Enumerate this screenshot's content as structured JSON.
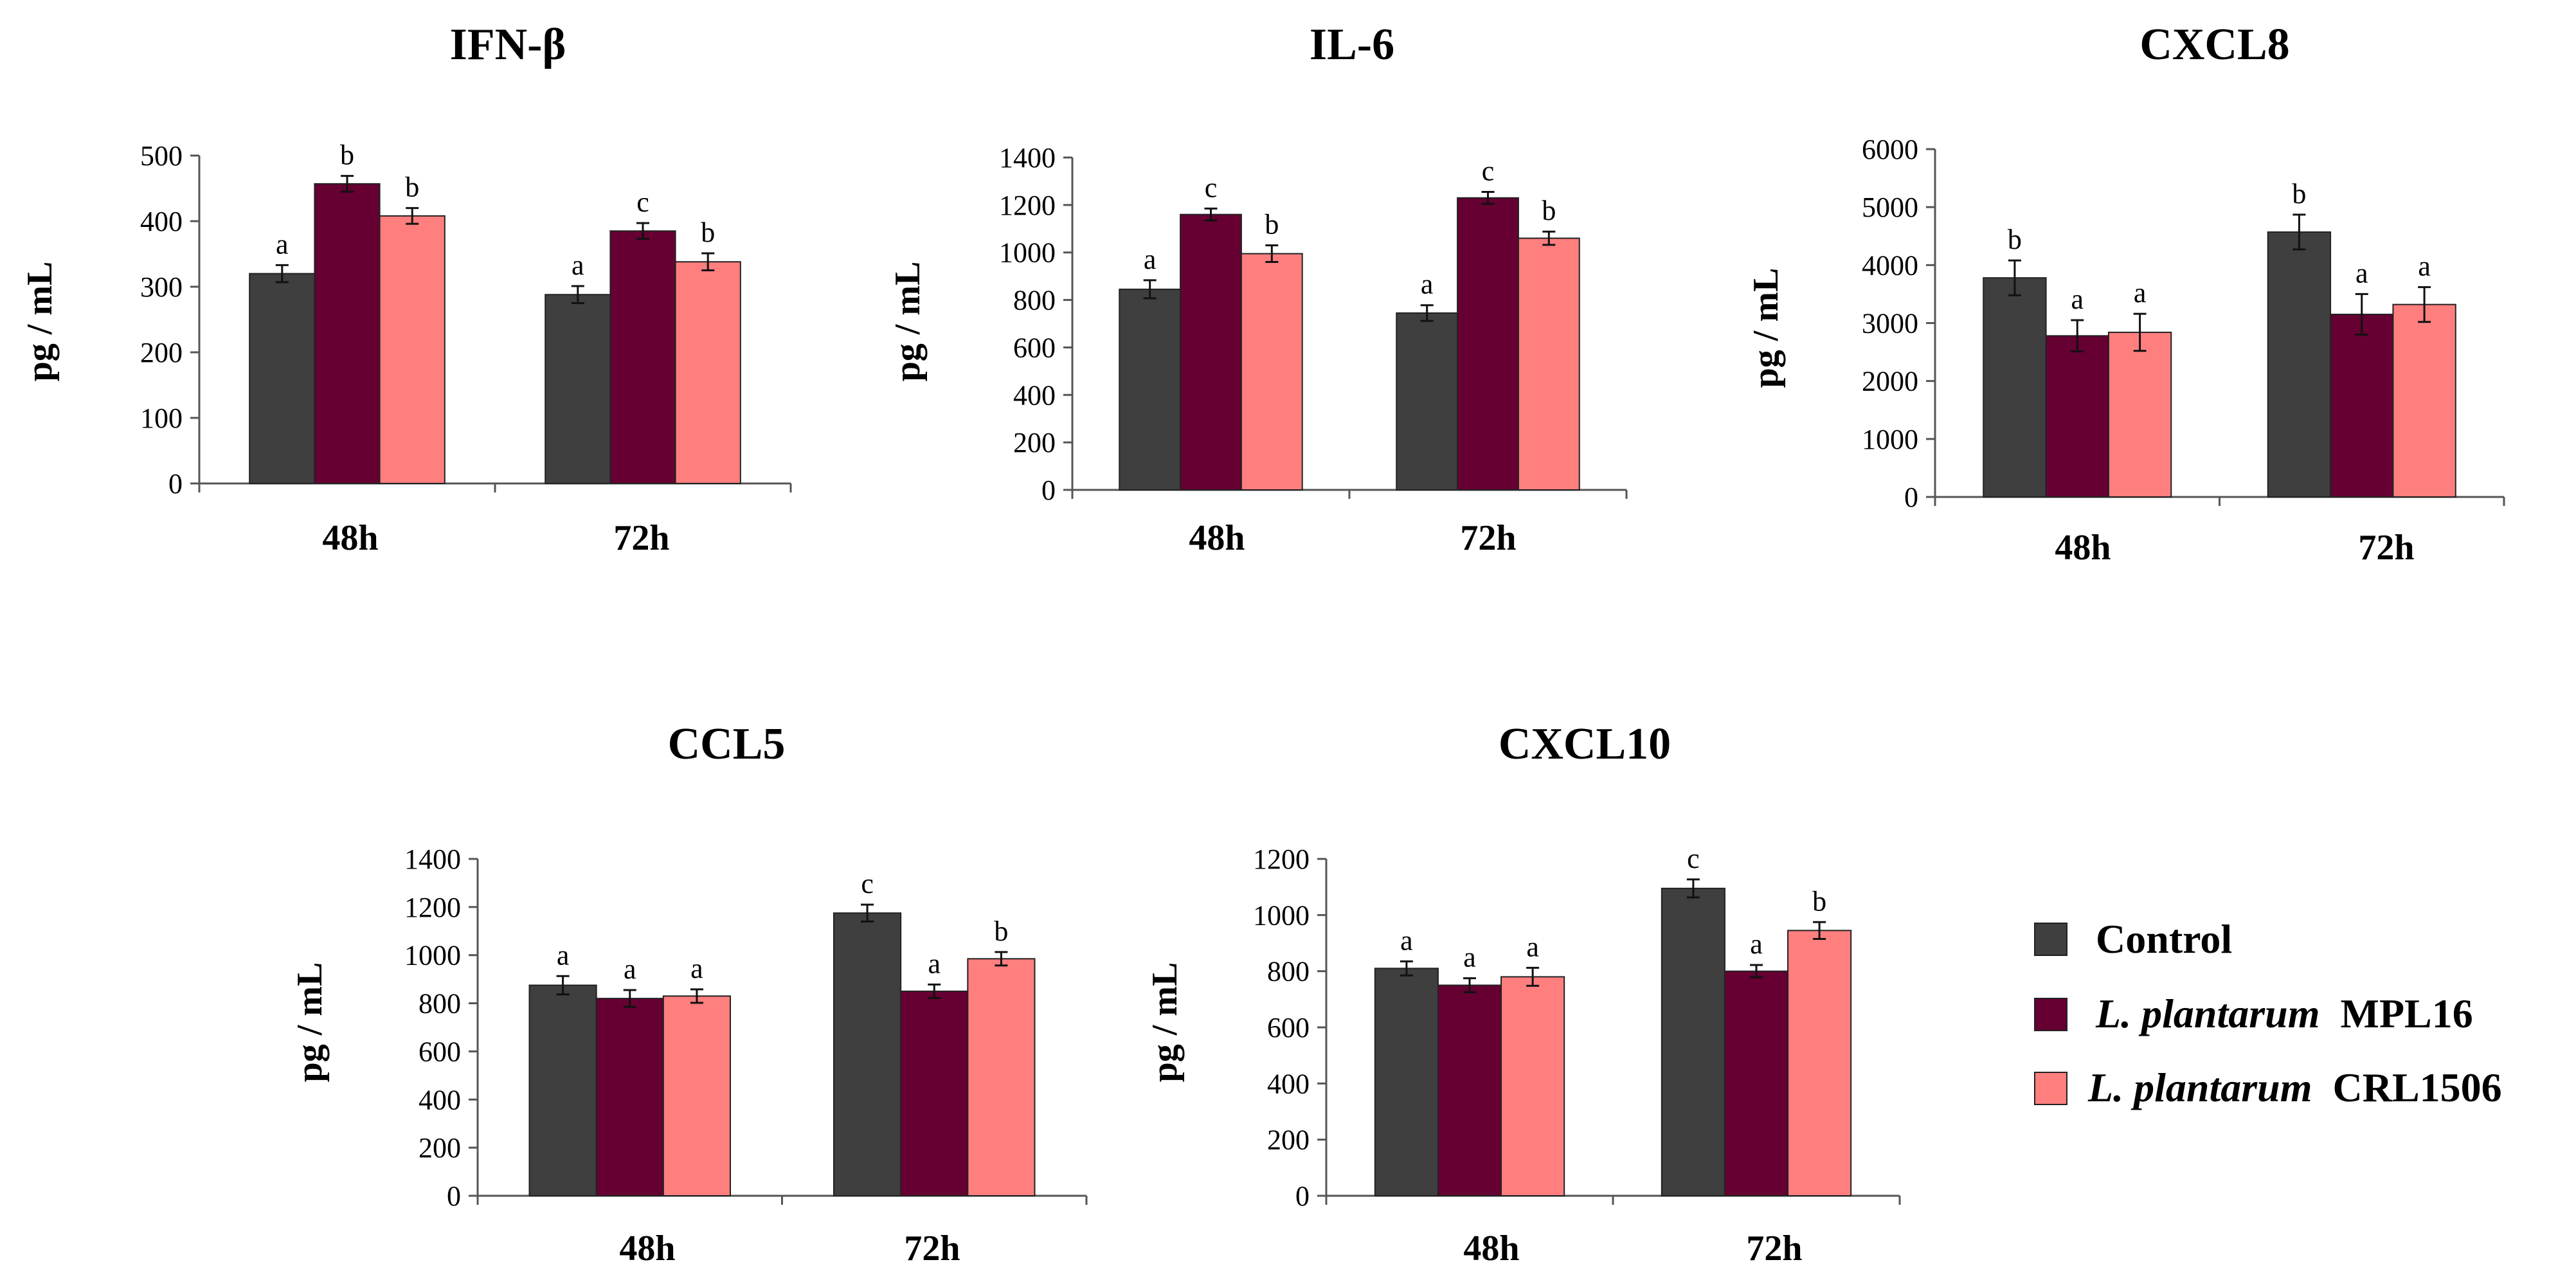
{
  "colors": {
    "control": "#3f3f3f",
    "mpl16": "#660033",
    "crl1506": "#ff7f7f"
  },
  "legend": {
    "control": "Control",
    "mpl16_species": "L. plantarum",
    "mpl16_strain": "MPL16",
    "crl1506_species": "L. plantarum",
    "crl1506_strain": "CRL1506"
  },
  "chart_data": [
    {
      "type": "bar",
      "title": "IFN-β",
      "ylabel": "pg / mL",
      "ylim": [
        0,
        500
      ],
      "yticks": [
        0,
        100,
        200,
        300,
        400,
        500
      ],
      "categories": [
        "48h",
        "72h"
      ],
      "series": [
        {
          "name": "Control",
          "values": [
            320,
            288
          ],
          "errors": [
            13,
            13
          ],
          "letters": [
            "a",
            "a"
          ]
        },
        {
          "name": "L. plantarum MPL16",
          "values": [
            457,
            385
          ],
          "errors": [
            12,
            12
          ],
          "letters": [
            "b",
            "c"
          ]
        },
        {
          "name": "L. plantarum CRL1506",
          "values": [
            408,
            338
          ],
          "errors": [
            12,
            13
          ],
          "letters": [
            "b",
            "b"
          ]
        }
      ]
    },
    {
      "type": "bar",
      "title": "IL-6",
      "ylabel": "pg / mL",
      "ylim": [
        0,
        1400
      ],
      "yticks": [
        0,
        200,
        400,
        600,
        800,
        1000,
        1200,
        1400
      ],
      "categories": [
        "48h",
        "72h"
      ],
      "series": [
        {
          "name": "Control",
          "values": [
            845,
            745
          ],
          "errors": [
            38,
            33
          ],
          "letters": [
            "a",
            "a"
          ]
        },
        {
          "name": "L. plantarum MPL16",
          "values": [
            1160,
            1230
          ],
          "errors": [
            25,
            25
          ],
          "letters": [
            "c",
            "c"
          ]
        },
        {
          "name": "L. plantarum CRL1506",
          "values": [
            995,
            1060
          ],
          "errors": [
            35,
            28
          ],
          "letters": [
            "b",
            "b"
          ]
        }
      ]
    },
    {
      "type": "bar",
      "title": "CXCL8",
      "ylabel": "pg / mL",
      "ylim": [
        0,
        6000
      ],
      "yticks": [
        0,
        1000,
        2000,
        3000,
        4000,
        5000,
        6000
      ],
      "categories": [
        "48h",
        "72h"
      ],
      "series": [
        {
          "name": "Control",
          "values": [
            3780,
            4570
          ],
          "errors": [
            300,
            300
          ],
          "letters": [
            "b",
            "b"
          ]
        },
        {
          "name": "L. plantarum MPL16",
          "values": [
            2780,
            3150
          ],
          "errors": [
            270,
            350
          ],
          "letters": [
            "a",
            "a"
          ]
        },
        {
          "name": "L. plantarum CRL1506",
          "values": [
            2840,
            3320
          ],
          "errors": [
            320,
            300
          ],
          "letters": [
            "a",
            "a"
          ]
        }
      ]
    },
    {
      "type": "bar",
      "title": "CCL5",
      "ylabel": "pg / mL",
      "ylim": [
        0,
        1400
      ],
      "yticks": [
        0,
        200,
        400,
        600,
        800,
        1000,
        1200,
        1400
      ],
      "categories": [
        "48h",
        "72h"
      ],
      "series": [
        {
          "name": "Control",
          "values": [
            875,
            1175
          ],
          "errors": [
            38,
            35
          ],
          "letters": [
            "a",
            "c"
          ]
        },
        {
          "name": "L. plantarum MPL16",
          "values": [
            820,
            850
          ],
          "errors": [
            35,
            28
          ],
          "letters": [
            "a",
            "a"
          ]
        },
        {
          "name": "L. plantarum CRL1506",
          "values": [
            830,
            985
          ],
          "errors": [
            28,
            28
          ],
          "letters": [
            "a",
            "b"
          ]
        }
      ]
    },
    {
      "type": "bar",
      "title": "CXCL10",
      "ylabel": "pg / mL",
      "ylim": [
        0,
        1200
      ],
      "yticks": [
        0,
        200,
        400,
        600,
        800,
        1000,
        1200
      ],
      "categories": [
        "48h",
        "72h"
      ],
      "series": [
        {
          "name": "Control",
          "values": [
            810,
            1095
          ],
          "errors": [
            25,
            32
          ],
          "letters": [
            "a",
            "c"
          ]
        },
        {
          "name": "L. plantarum MPL16",
          "values": [
            750,
            800
          ],
          "errors": [
            25,
            22
          ],
          "letters": [
            "a",
            "a"
          ]
        },
        {
          "name": "L. plantarum CRL1506",
          "values": [
            780,
            945
          ],
          "errors": [
            32,
            30
          ],
          "letters": [
            "a",
            "b"
          ]
        }
      ]
    }
  ]
}
